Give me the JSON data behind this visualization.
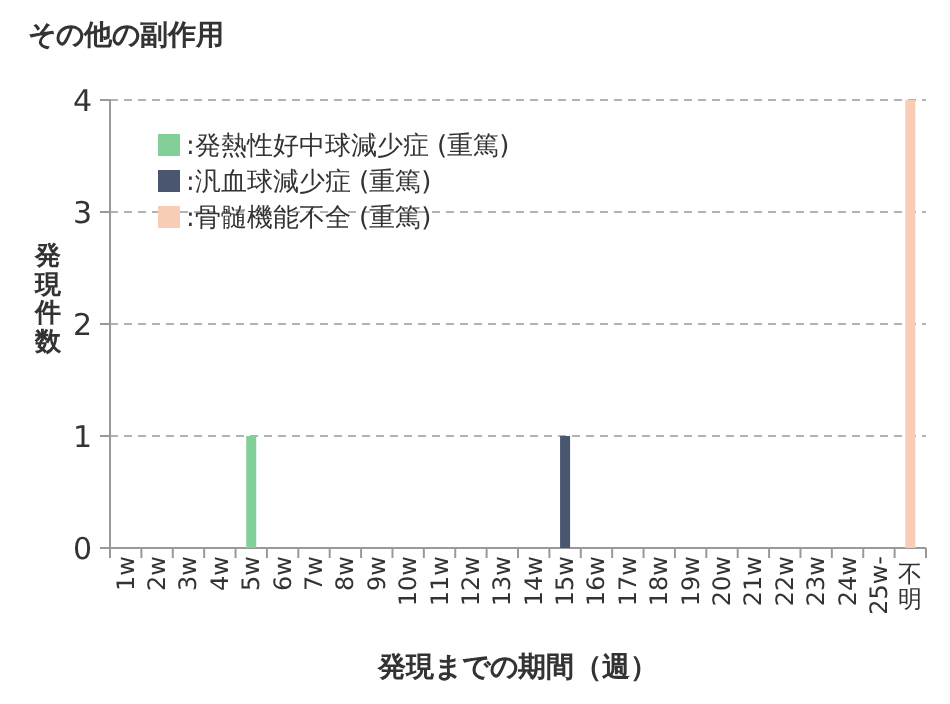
{
  "chart_data": {
    "type": "bar",
    "title": "その他の副作用",
    "xlabel": "発現までの期間（週）",
    "ylabel": "発現件数",
    "categories": [
      "1w",
      "2w",
      "3w",
      "4w",
      "5w",
      "6w",
      "7w",
      "8w",
      "9w",
      "10w",
      "11w",
      "12w",
      "13w",
      "14w",
      "15w",
      "16w",
      "17w",
      "18w",
      "19w",
      "20w",
      "21w",
      "22w",
      "23w",
      "24w",
      "25w-",
      "不明"
    ],
    "series": [
      {
        "name": ":発熱性好中球減少症 (重篤)",
        "color": "#82cf98",
        "values": [
          null,
          null,
          null,
          null,
          1,
          null,
          null,
          null,
          null,
          null,
          null,
          null,
          null,
          null,
          null,
          null,
          null,
          null,
          null,
          null,
          null,
          null,
          null,
          null,
          null,
          null
        ]
      },
      {
        "name": ":汎血球減少症 (重篤)",
        "color": "#4a5670",
        "values": [
          null,
          null,
          null,
          null,
          null,
          null,
          null,
          null,
          null,
          null,
          null,
          null,
          null,
          null,
          1,
          null,
          null,
          null,
          null,
          null,
          null,
          null,
          null,
          null,
          null,
          null
        ]
      },
      {
        "name": ":骨髄機能不全 (重篤)",
        "color": "#f9cdb5",
        "values": [
          null,
          null,
          null,
          null,
          null,
          null,
          null,
          null,
          null,
          null,
          null,
          null,
          null,
          null,
          null,
          null,
          null,
          null,
          null,
          null,
          null,
          null,
          null,
          null,
          null,
          4
        ]
      }
    ],
    "ylim": [
      0,
      4
    ],
    "yticks": [
      0,
      1,
      2,
      3,
      4
    ],
    "grid": "y",
    "legend": "top left"
  }
}
